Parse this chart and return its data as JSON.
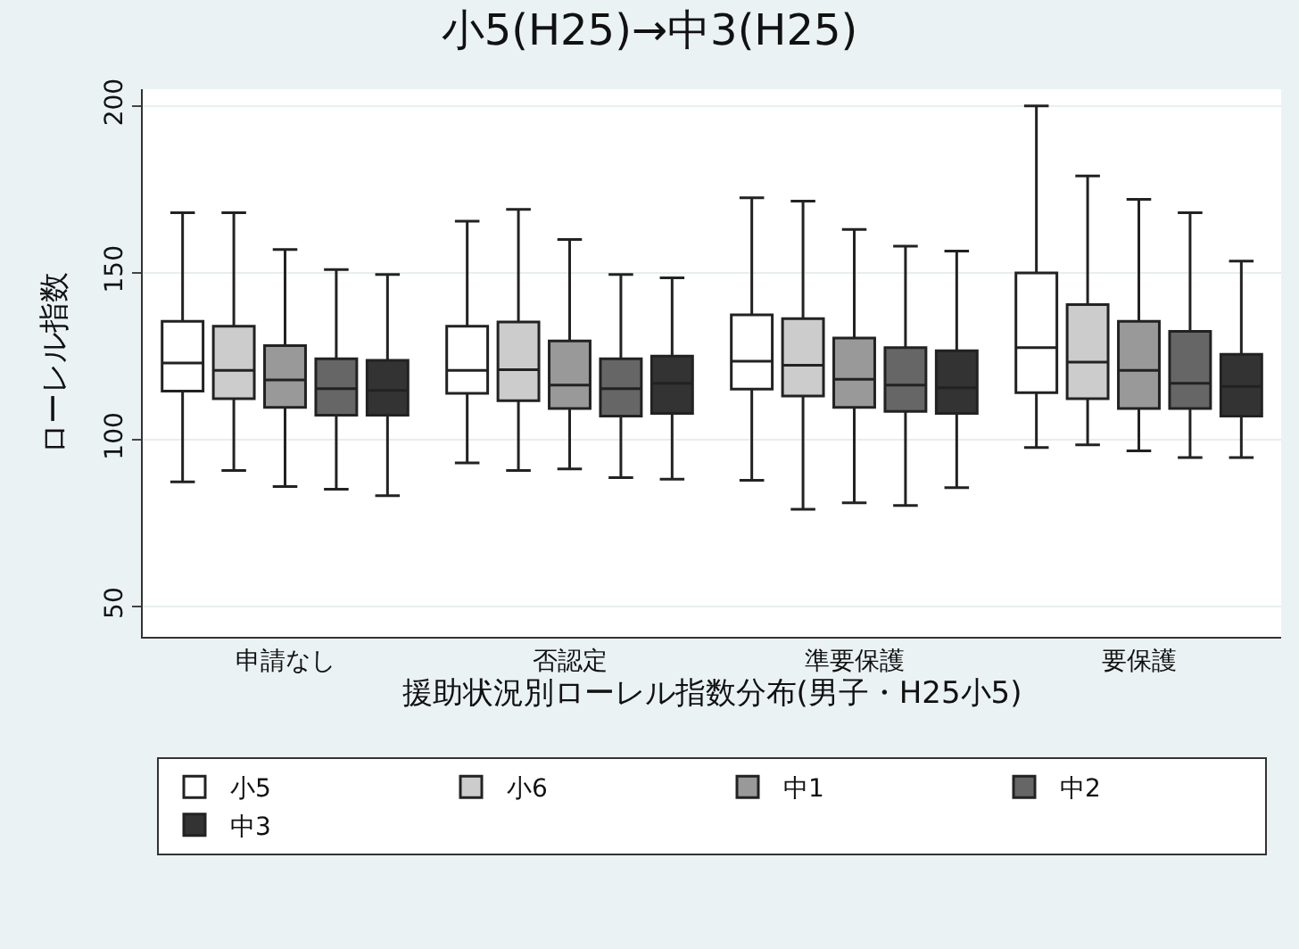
{
  "chart_data": {
    "type": "box",
    "title": "小5(H25)→中3(H25)",
    "xlabel": "援助状況別ローレル指数分布(男子・H25小5)",
    "ylabel": "ローレル指数",
    "categories": [
      "申請なし",
      "否認定",
      "準要保護",
      "要保護"
    ],
    "ylim": [
      41,
      205
    ],
    "yticks": [
      50,
      100,
      150,
      200
    ],
    "grid": "y",
    "legend": "bottom",
    "series": [
      {
        "name": "小5",
        "color": "#ffffff",
        "boxes": [
          {
            "low": 87.4,
            "q1": 114.6,
            "median": 123,
            "q3": 135.5,
            "high": 168
          },
          {
            "low": 93.1,
            "q1": 113.9,
            "median": 120.8,
            "q3": 134,
            "high": 165.5
          },
          {
            "low": 87.9,
            "q1": 115.2,
            "median": 123.5,
            "q3": 137.4,
            "high": 172.5
          },
          {
            "low": 97.7,
            "q1": 114.1,
            "median": 127.6,
            "q3": 150,
            "high": 200
          }
        ]
      },
      {
        "name": "小6",
        "color": "#cccccc",
        "boxes": [
          {
            "low": 90.8,
            "q1": 112.3,
            "median": 120.8,
            "q3": 134,
            "high": 168
          },
          {
            "low": 90.8,
            "q1": 111.7,
            "median": 121,
            "q3": 135.3,
            "high": 169
          },
          {
            "low": 79.2,
            "q1": 113.1,
            "median": 122.3,
            "q3": 136.3,
            "high": 171.5
          },
          {
            "low": 98.5,
            "q1": 112.3,
            "median": 123.3,
            "q3": 140.5,
            "high": 179
          }
        ]
      },
      {
        "name": "中1",
        "color": "#999999",
        "boxes": [
          {
            "low": 86,
            "q1": 109.7,
            "median": 117.9,
            "q3": 128.2,
            "high": 157
          },
          {
            "low": 91.3,
            "q1": 109.4,
            "median": 116.4,
            "q3": 129.6,
            "high": 160
          },
          {
            "low": 81.1,
            "q1": 109.7,
            "median": 118.1,
            "q3": 130.5,
            "high": 163
          },
          {
            "low": 96.7,
            "q1": 109.4,
            "median": 120.8,
            "q3": 135.5,
            "high": 172
          }
        ]
      },
      {
        "name": "中2",
        "color": "#666666",
        "boxes": [
          {
            "low": 85.2,
            "q1": 107.4,
            "median": 115.3,
            "q3": 124.3,
            "high": 151
          },
          {
            "low": 88.7,
            "q1": 107.1,
            "median": 115.3,
            "q3": 124.3,
            "high": 149.5
          },
          {
            "low": 80.3,
            "q1": 108.5,
            "median": 116.4,
            "q3": 127.6,
            "high": 158
          },
          {
            "low": 94.7,
            "q1": 109.4,
            "median": 116.9,
            "q3": 132.5,
            "high": 168
          }
        ]
      },
      {
        "name": "中3",
        "color": "#333333",
        "boxes": [
          {
            "low": 83.3,
            "q1": 107.4,
            "median": 114.8,
            "q3": 123.8,
            "high": 149.5
          },
          {
            "low": 88.2,
            "q1": 107.9,
            "median": 116.9,
            "q3": 125.1,
            "high": 148.5
          },
          {
            "low": 85.7,
            "q1": 107.9,
            "median": 115.6,
            "q3": 126.7,
            "high": 156.5
          },
          {
            "low": 94.7,
            "q1": 107.1,
            "median": 116,
            "q3": 125.6,
            "high": 153.5
          }
        ]
      }
    ]
  }
}
